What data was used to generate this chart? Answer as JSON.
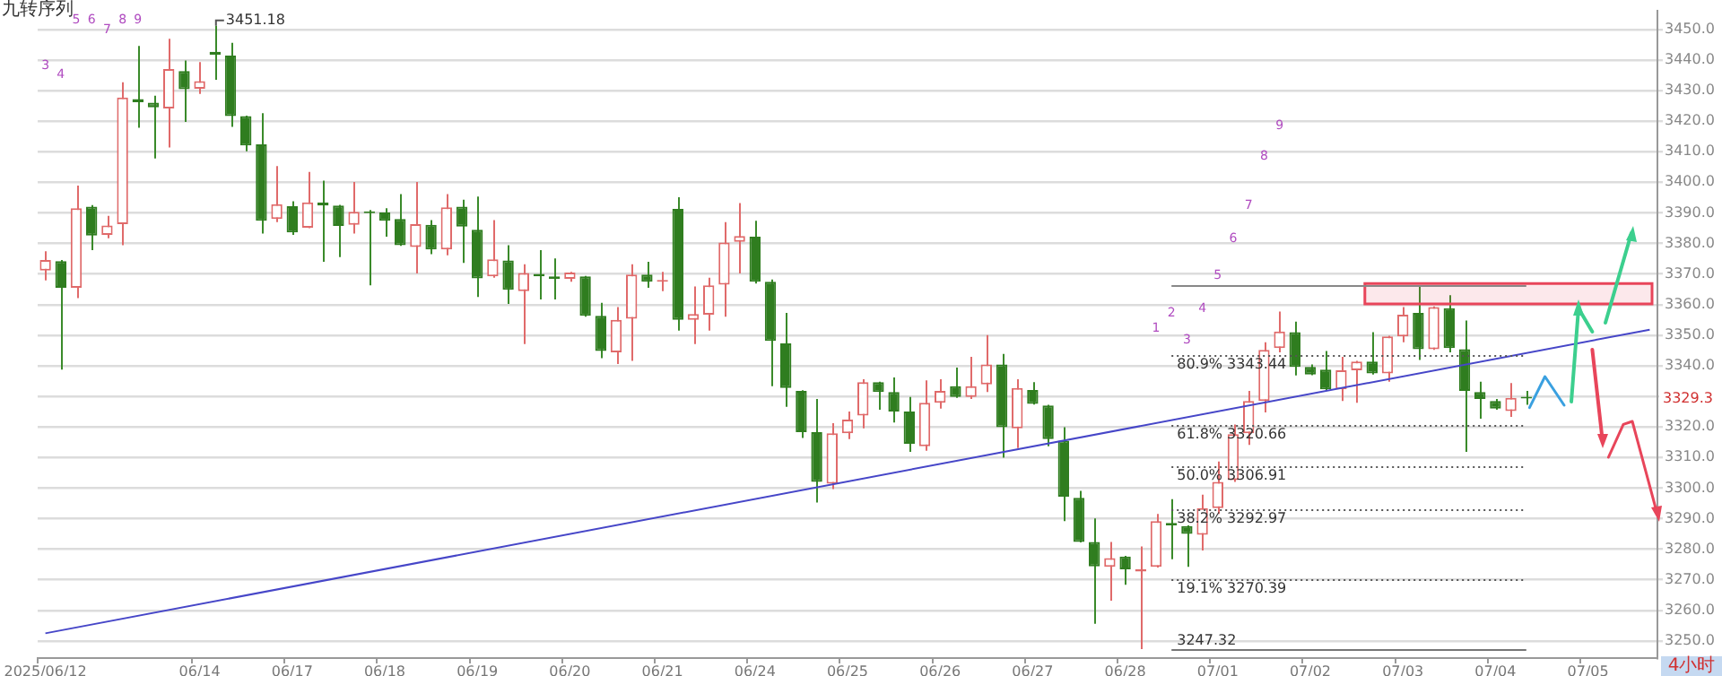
{
  "chart_data": {
    "type": "candlestick",
    "title": "九转序列",
    "categories": [
      "2025/06/12",
      null,
      null,
      null,
      null,
      null,
      null,
      null,
      null,
      null,
      "06/14",
      null,
      null,
      null,
      null,
      null,
      "06/17",
      null,
      null,
      null,
      null,
      null,
      "06/18",
      null,
      null,
      null,
      null,
      null,
      "06/19",
      null,
      null,
      null,
      null,
      null,
      "06/20",
      null,
      null,
      null,
      null,
      null,
      "06/21",
      null,
      null,
      null,
      null,
      null,
      "06/24",
      null,
      null,
      null,
      null,
      null,
      "06/25",
      null,
      null,
      null,
      null,
      null,
      "06/26",
      null,
      null,
      null,
      null,
      null,
      "06/27",
      null,
      null,
      null,
      null,
      null,
      "06/28",
      null,
      null,
      null,
      null,
      null,
      "07/01",
      null,
      null,
      null,
      null,
      null,
      "07/02",
      null,
      null,
      null,
      null,
      null,
      "07/03",
      null,
      null,
      null,
      null,
      null,
      "07/04",
      null,
      null,
      null,
      null,
      null,
      "07/05",
      null,
      null,
      null,
      null
    ],
    "ohlc": [
      [
        3371.1,
        3377.4,
        3367.9,
        3374.6
      ],
      [
        3374.2,
        3374.6,
        3338.7,
        3365.5
      ],
      [
        3365.5,
        3398.9,
        3362.1,
        3391.5
      ],
      [
        3392.0,
        3392.5,
        3377.8,
        3382.6
      ],
      [
        3382.8,
        3389.0,
        3381.7,
        3385.9
      ],
      [
        3386.3,
        3432.7,
        3379.4,
        3427.7
      ],
      [
        3427.2,
        3444.6,
        3417.8,
        3426.2
      ],
      [
        3426.0,
        3428.3,
        3407.8,
        3424.5
      ],
      [
        3424.1,
        3446.9,
        3411.4,
        3437.0
      ],
      [
        3436.4,
        3439.8,
        3419.7,
        3430.4
      ],
      [
        3430.6,
        3439.3,
        3428.9,
        3433.1
      ],
      [
        3442.7,
        3451.18,
        3433.5,
        3441.7
      ],
      [
        3441.4,
        3445.6,
        3418.1,
        3421.6
      ],
      [
        3421.6,
        3421.8,
        3410.1,
        3412.0
      ],
      [
        3412.4,
        3422.6,
        3383.2,
        3387.4
      ],
      [
        3388.0,
        3405.3,
        3387.0,
        3392.8
      ],
      [
        3392.2,
        3393.8,
        3382.8,
        3383.6
      ],
      [
        3385.1,
        3403.4,
        3385.0,
        3393.4
      ],
      [
        3393.4,
        3400.5,
        3374.0,
        3392.4
      ],
      [
        3392.4,
        3392.6,
        3375.5,
        3385.7
      ],
      [
        3386.1,
        3400.1,
        3383.2,
        3390.3
      ],
      [
        3390.5,
        3390.9,
        3366.3,
        3389.9
      ],
      [
        3390.1,
        3391.5,
        3382.2,
        3387.4
      ],
      [
        3388.0,
        3396.1,
        3379.2,
        3379.4
      ],
      [
        3378.8,
        3400.1,
        3370.2,
        3386.3
      ],
      [
        3386.1,
        3387.6,
        3376.5,
        3378.0
      ],
      [
        3378.0,
        3396.1,
        3376.1,
        3391.8
      ],
      [
        3392.0,
        3394.3,
        3373.6,
        3385.5
      ],
      [
        3384.5,
        3395.3,
        3362.5,
        3368.6
      ],
      [
        3369.2,
        3387.6,
        3368.8,
        3374.8
      ],
      [
        3374.4,
        3379.4,
        3360.2,
        3364.8
      ],
      [
        3364.4,
        3373.2,
        3347.1,
        3370.3
      ],
      [
        3370.0,
        3377.8,
        3361.7,
        3369.2
      ],
      [
        3369.2,
        3375.1,
        3361.7,
        3368.4
      ],
      [
        3368.4,
        3370.7,
        3367.5,
        3370.5
      ],
      [
        3369.2,
        3369.4,
        3356.0,
        3356.3
      ],
      [
        3356.3,
        3360.6,
        3342.5,
        3344.8
      ],
      [
        3344.4,
        3359.2,
        3340.6,
        3355.0
      ],
      [
        3355.4,
        3373.2,
        3341.6,
        3369.8
      ],
      [
        3369.8,
        3374.0,
        3365.5,
        3367.5
      ],
      [
        3367.5,
        3370.7,
        3364.4,
        3367.9
      ],
      [
        3391.3,
        3395.1,
        3351.5,
        3355.0
      ],
      [
        3355.0,
        3365.9,
        3347.1,
        3356.9
      ],
      [
        3356.7,
        3368.8,
        3351.5,
        3366.3
      ],
      [
        3366.5,
        3387.0,
        3356.0,
        3380.3
      ],
      [
        3380.5,
        3393.2,
        3370.2,
        3382.4
      ],
      [
        3382.2,
        3387.4,
        3366.9,
        3367.5
      ],
      [
        3367.5,
        3368.2,
        3333.3,
        3348.1
      ],
      [
        3347.3,
        3357.3,
        3326.6,
        3332.7
      ],
      [
        3331.8,
        3332.0,
        3316.4,
        3318.3
      ],
      [
        3318.3,
        3329.1,
        3295.3,
        3302.0
      ],
      [
        3301.4,
        3321.2,
        3299.7,
        3317.9
      ],
      [
        3317.9,
        3325.0,
        3316.0,
        3322.4
      ],
      [
        3323.7,
        3335.6,
        3319.5,
        3334.6
      ],
      [
        3334.6,
        3334.8,
        3325.6,
        3331.4
      ],
      [
        3331.4,
        3336.2,
        3321.4,
        3325.0
      ],
      [
        3325.0,
        3329.8,
        3311.8,
        3314.5
      ],
      [
        3313.7,
        3335.2,
        3312.2,
        3327.9
      ],
      [
        3327.9,
        3335.6,
        3326.0,
        3331.8
      ],
      [
        3333.3,
        3339.4,
        3329.5,
        3329.8
      ],
      [
        3329.8,
        3342.9,
        3329.1,
        3333.3
      ],
      [
        3333.9,
        3350.0,
        3331.4,
        3340.4
      ],
      [
        3340.4,
        3343.9,
        3309.9,
        3319.9
      ],
      [
        3319.5,
        3335.6,
        3313.1,
        3332.7
      ],
      [
        3332.1,
        3334.6,
        3327.3,
        3327.5
      ],
      [
        3327.0,
        3327.2,
        3313.7,
        3316.0
      ],
      [
        3315.5,
        3319.9,
        3289.2,
        3297.2
      ],
      [
        3296.8,
        3299.1,
        3282.2,
        3282.4
      ],
      [
        3282.4,
        3290.1,
        3255.6,
        3274.4
      ],
      [
        3274.2,
        3282.4,
        3263.2,
        3277.1
      ],
      [
        3277.6,
        3277.8,
        3268.4,
        3273.4
      ],
      [
        3272.7,
        3280.9,
        3247.32,
        3273.4
      ],
      [
        3274.2,
        3291.5,
        3274.0,
        3289.2
      ],
      [
        3288.6,
        3296.4,
        3276.7,
        3287.8
      ],
      [
        3287.6,
        3287.8,
        3274.2,
        3285.0
      ],
      [
        3284.7,
        3297.8,
        3279.6,
        3293.4
      ],
      [
        3293.4,
        3308.7,
        3291.5,
        3302.0
      ],
      [
        3302.6,
        3320.8,
        3302.0,
        3317.6
      ],
      [
        3317.9,
        3331.8,
        3314.1,
        3328.5
      ],
      [
        3328.5,
        3347.7,
        3324.7,
        3345.2
      ],
      [
        3345.8,
        3357.7,
        3344.4,
        3351.2
      ],
      [
        3351.0,
        3354.4,
        3336.8,
        3339.6
      ],
      [
        3339.6,
        3340.4,
        3336.9,
        3337.1
      ],
      [
        3338.7,
        3344.8,
        3331.8,
        3332.3
      ],
      [
        3332.3,
        3342.9,
        3328.5,
        3338.5
      ],
      [
        3338.5,
        3341.6,
        3327.9,
        3341.4
      ],
      [
        3341.4,
        3351.0,
        3337.1,
        3337.5
      ],
      [
        3337.5,
        3349.8,
        3334.8,
        3349.6
      ],
      [
        3349.6,
        3359.2,
        3347.7,
        3356.7
      ],
      [
        3357.3,
        3366.3,
        3341.9,
        3345.4
      ],
      [
        3345.4,
        3359.4,
        3345.2,
        3359.2
      ],
      [
        3358.8,
        3363.1,
        3344.4,
        3345.8
      ],
      [
        3345.4,
        3354.8,
        3311.8,
        3331.8
      ],
      [
        3331.4,
        3334.8,
        3322.7,
        3329.1
      ],
      [
        3328.5,
        3329.1,
        3325.6,
        3326.0
      ],
      [
        3325.2,
        3334.3,
        3323.3,
        3329.5
      ],
      [
        3329.8,
        3331.8,
        3327.2,
        3329.3
      ],
      null,
      null,
      null,
      null,
      null,
      null,
      null,
      null
    ],
    "value_labels": [
      "3",
      "4",
      "5",
      "6",
      "7",
      "8",
      "9",
      null,
      null,
      null,
      null,
      null,
      null,
      null,
      null,
      null,
      null,
      null,
      null,
      null,
      null,
      null,
      null,
      null,
      null,
      null,
      null,
      null,
      null,
      null,
      null,
      null,
      null,
      null,
      null,
      null,
      null,
      null,
      null,
      null,
      null,
      null,
      null,
      null,
      null,
      null,
      null,
      null,
      null,
      null,
      null,
      null,
      null,
      null,
      null,
      null,
      null,
      null,
      null,
      null,
      null,
      null,
      null,
      null,
      null,
      null,
      null,
      null,
      null,
      null,
      null,
      null,
      "1",
      "2",
      "3",
      "4",
      "5",
      "6",
      "7",
      "8",
      "9",
      null,
      null,
      null,
      null,
      null,
      null,
      null,
      null,
      null,
      null,
      null,
      null,
      null,
      null,
      null,
      null,
      null,
      null,
      null,
      null,
      null,
      null,
      null,
      null
    ],
    "series": [
      {
        "type": "line",
        "color": "#4646c8",
        "values": [
          3252.5,
          null,
          null,
          null,
          null,
          null,
          null,
          null,
          null,
          null,
          null,
          null,
          null,
          null,
          null,
          null,
          null,
          null,
          null,
          null,
          null,
          null,
          null,
          null,
          null,
          null,
          null,
          null,
          null,
          null,
          null,
          null,
          null,
          null,
          null,
          null,
          null,
          null,
          null,
          null,
          null,
          null,
          null,
          null,
          null,
          null,
          null,
          null,
          null,
          null,
          null,
          null,
          null,
          null,
          null,
          null,
          null,
          null,
          null,
          null,
          null,
          null,
          null,
          null,
          null,
          null,
          null,
          null,
          null,
          null,
          null,
          null,
          null,
          null,
          null,
          null,
          null,
          null,
          null,
          null,
          null,
          null,
          null,
          null,
          null,
          null,
          null,
          null,
          null,
          null,
          null,
          null,
          null,
          null,
          null,
          null,
          null,
          null,
          null,
          null,
          null,
          null,
          null,
          null,
          3351.8
        ]
      }
    ],
    "ylim": [
      3244.4,
      3456.2
    ],
    "yticks": [
      {
        "value": 3250,
        "label": "3250.0"
      },
      {
        "value": 3260,
        "label": "3260.0"
      },
      {
        "value": 3270,
        "label": "3270.0"
      },
      {
        "value": 3280,
        "label": "3280.0"
      },
      {
        "value": 3290,
        "label": "3290.0"
      },
      {
        "value": 3300,
        "label": "3300.0"
      },
      {
        "value": 3310,
        "label": "3310.0"
      },
      {
        "value": 3320,
        "label": "3320.0"
      },
      {
        "value": 3330,
        "label": null
      },
      {
        "value": 3340,
        "label": "3340.0"
      },
      {
        "value": 3350,
        "label": "3350.0"
      },
      {
        "value": 3360,
        "label": "3360.0"
      },
      {
        "value": 3370,
        "label": "3370.0"
      },
      {
        "value": 3380,
        "label": "3380.0"
      },
      {
        "value": 3390,
        "label": "3390.0"
      },
      {
        "value": 3400,
        "label": "3400.0"
      },
      {
        "value": 3410,
        "label": "3410.0"
      },
      {
        "value": 3420,
        "label": "3420.0"
      },
      {
        "value": 3430,
        "label": "3430.0"
      },
      {
        "value": 3440,
        "label": "3440.0"
      },
      {
        "value": 3450,
        "label": "3450.0"
      }
    ],
    "grid": "y",
    "ref_lines": [
      {
        "axis": "y",
        "value": 3366.5,
        "color": "#888888",
        "line_style": "solid"
      },
      {
        "axis": "y",
        "value": 3343.44,
        "label": "80.9% 3343.44",
        "color": "#555555",
        "line_style": "dotted"
      },
      {
        "axis": "y",
        "value": 3320.66,
        "label": "61.8% 3320.66",
        "color": "#555555",
        "line_style": "dotted"
      },
      {
        "axis": "y",
        "value": 3306.91,
        "label": "50.0% 3306.91",
        "color": "#555555",
        "line_style": "dotted"
      },
      {
        "axis": "y",
        "value": 3292.97,
        "label": "38.2% 3292.97",
        "color": "#555555",
        "line_style": "dotted"
      },
      {
        "axis": "y",
        "value": 3270.39,
        "label": "19.1% 3270.39",
        "color": "#555555",
        "line_style": "dotted"
      },
      {
        "axis": "y",
        "value": 3247.32,
        "label": "3247.32",
        "color": "#777777",
        "line_style": "solid"
      }
    ],
    "bands": [
      {
        "axis": "y",
        "from": 3360.2,
        "to": 3366.9,
        "color": "#e8455a"
      }
    ],
    "annotations": [
      "3451.18",
      "3329.3",
      "4小时"
    ]
  }
}
